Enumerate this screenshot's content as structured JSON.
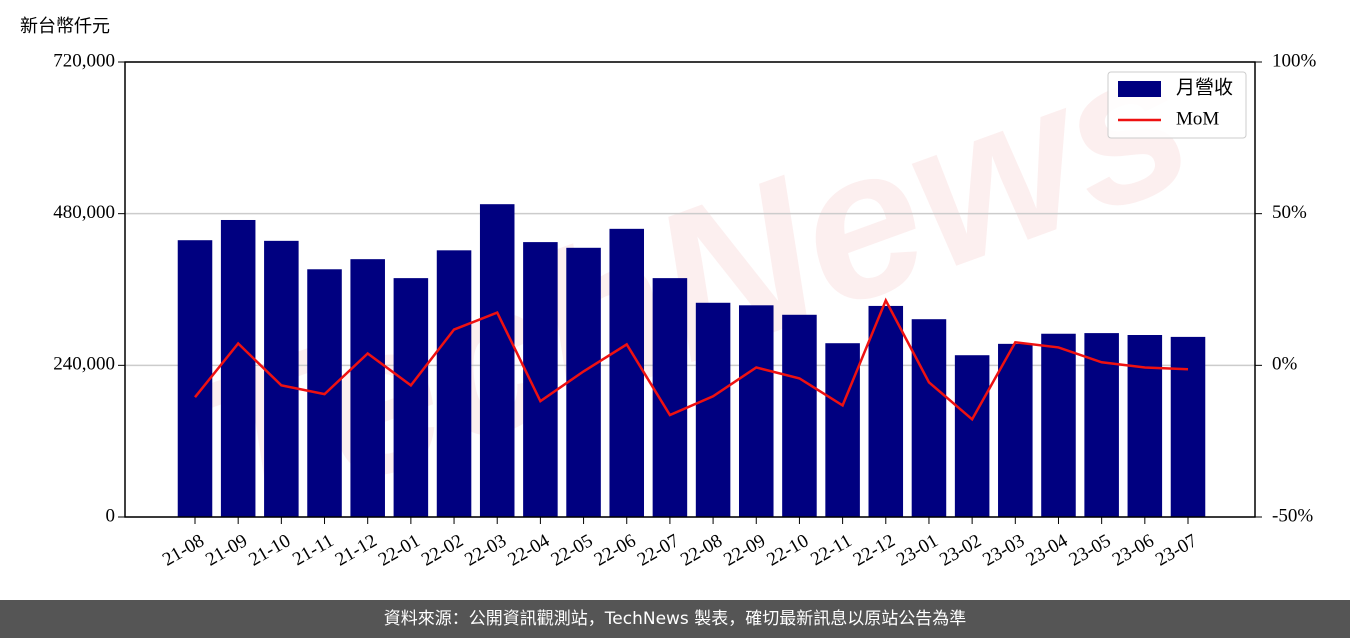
{
  "chart_data": {
    "type": "bar_line",
    "y_label": "新台幣仟元",
    "watermark": "TechNews",
    "categories": [
      "21-08",
      "21-09",
      "21-10",
      "21-11",
      "21-12",
      "22-01",
      "22-02",
      "22-03",
      "22-04",
      "22-05",
      "22-06",
      "22-07",
      "22-08",
      "22-09",
      "22-10",
      "22-11",
      "22-12",
      "23-01",
      "23-02",
      "23-03",
      "23-04",
      "23-05",
      "23-06",
      "23-07"
    ],
    "series": [
      {
        "name": "月營收",
        "type": "bar",
        "color": "#000080",
        "values": [
          438000,
          470000,
          437000,
          392000,
          408000,
          378000,
          422000,
          495000,
          435000,
          426000,
          456000,
          378000,
          339000,
          335000,
          320000,
          275000,
          334000,
          313000,
          256000,
          274000,
          290000,
          291000,
          288000,
          285000
        ]
      },
      {
        "name": "MoM",
        "type": "line",
        "axis": "y2",
        "color": "#ee1111",
        "values": [
          -10.5,
          7.2,
          -6.6,
          -9.5,
          3.9,
          -6.6,
          11.8,
          17.4,
          -11.8,
          -2,
          6.9,
          -16.4,
          -10.2,
          -0.7,
          -4.3,
          -13.2,
          21.4,
          -5.6,
          -17.8,
          7.6,
          5.9,
          1,
          -0.7,
          -1.3
        ]
      }
    ],
    "ylim": [
      0,
      720000
    ],
    "yticks": [
      0,
      {
        "value": 240000,
        "label": "240,000"
      },
      {
        "value": 480000,
        "label": "480,000"
      },
      {
        "value": 720000,
        "label": "720,000"
      }
    ],
    "y2lim": [
      -50,
      100
    ],
    "y2ticks": [
      {
        "value": -50,
        "label": "-50%"
      },
      {
        "value": 0,
        "label": "0%"
      },
      {
        "value": 50,
        "label": "50%"
      },
      {
        "value": 100,
        "label": "100%"
      }
    ],
    "grid": true,
    "legend": "upper right"
  },
  "footer": "資料來源：公開資訊觀測站，TechNews 製表，確切最新訊息以原站公告為準"
}
